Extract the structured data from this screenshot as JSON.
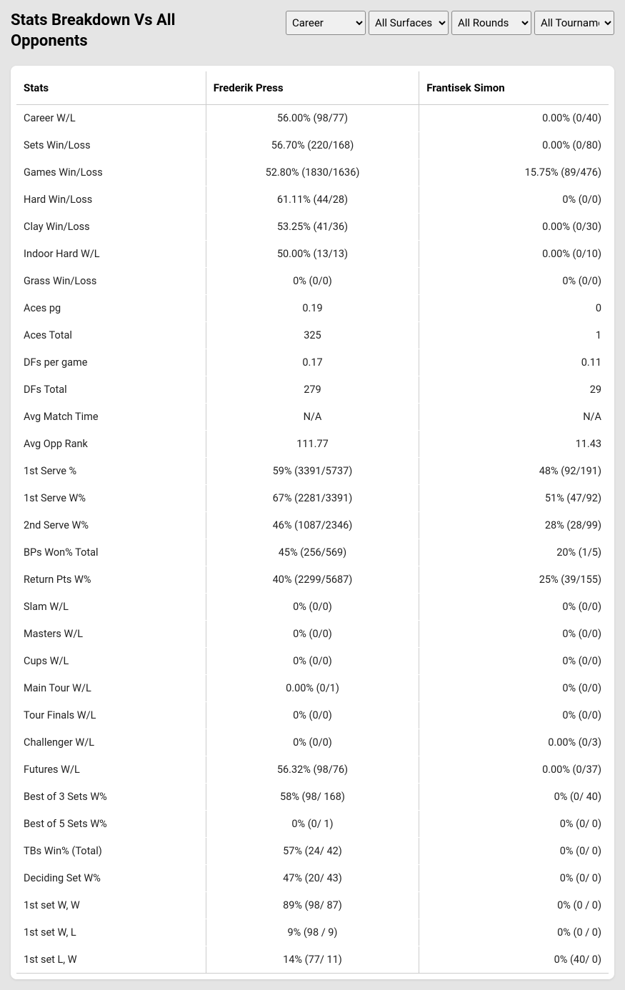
{
  "title": "Stats Breakdown Vs All Opponents",
  "filters": {
    "period": {
      "selected": "Career",
      "options": [
        "Career"
      ]
    },
    "surface": {
      "selected": "All Surfaces",
      "options": [
        "All Surfaces"
      ]
    },
    "round": {
      "selected": "All Rounds",
      "options": [
        "All Rounds"
      ]
    },
    "tournament": {
      "selected": "All Tournaments",
      "options": [
        "All Tournaments"
      ]
    }
  },
  "columns": {
    "stats": "Stats",
    "player1": "Frederik Press",
    "player2": "Frantisek Simon"
  },
  "rows": [
    {
      "label": "Career W/L",
      "p1": "56.00% (98/77)",
      "p2": "0.00% (0/40)"
    },
    {
      "label": "Sets Win/Loss",
      "p1": "56.70% (220/168)",
      "p2": "0.00% (0/80)"
    },
    {
      "label": "Games Win/Loss",
      "p1": "52.80% (1830/1636)",
      "p2": "15.75% (89/476)"
    },
    {
      "label": "Hard Win/Loss",
      "p1": "61.11% (44/28)",
      "p2": "0% (0/0)"
    },
    {
      "label": "Clay Win/Loss",
      "p1": "53.25% (41/36)",
      "p2": "0.00% (0/30)"
    },
    {
      "label": "Indoor Hard W/L",
      "p1": "50.00% (13/13)",
      "p2": "0.00% (0/10)"
    },
    {
      "label": "Grass Win/Loss",
      "p1": "0% (0/0)",
      "p2": "0% (0/0)"
    },
    {
      "label": "Aces pg",
      "p1": "0.19",
      "p2": "0"
    },
    {
      "label": "Aces Total",
      "p1": "325",
      "p2": "1"
    },
    {
      "label": "DFs per game",
      "p1": "0.17",
      "p2": "0.11"
    },
    {
      "label": "DFs Total",
      "p1": "279",
      "p2": "29"
    },
    {
      "label": "Avg Match Time",
      "p1": "N/A",
      "p2": "N/A"
    },
    {
      "label": "Avg Opp Rank",
      "p1": "111.77",
      "p2": "11.43"
    },
    {
      "label": "1st Serve %",
      "p1": "59% (3391/5737)",
      "p2": "48% (92/191)"
    },
    {
      "label": "1st Serve W%",
      "p1": "67% (2281/3391)",
      "p2": "51% (47/92)"
    },
    {
      "label": "2nd Serve W%",
      "p1": "46% (1087/2346)",
      "p2": "28% (28/99)"
    },
    {
      "label": "BPs Won% Total",
      "p1": "45% (256/569)",
      "p2": "20% (1/5)"
    },
    {
      "label": "Return Pts W%",
      "p1": "40% (2299/5687)",
      "p2": "25% (39/155)"
    },
    {
      "label": "Slam W/L",
      "p1": "0% (0/0)",
      "p2": "0% (0/0)"
    },
    {
      "label": "Masters W/L",
      "p1": "0% (0/0)",
      "p2": "0% (0/0)"
    },
    {
      "label": "Cups W/L",
      "p1": "0% (0/0)",
      "p2": "0% (0/0)"
    },
    {
      "label": "Main Tour W/L",
      "p1": "0.00% (0/1)",
      "p2": "0% (0/0)"
    },
    {
      "label": "Tour Finals W/L",
      "p1": "0% (0/0)",
      "p2": "0% (0/0)"
    },
    {
      "label": "Challenger W/L",
      "p1": "0% (0/0)",
      "p2": "0.00% (0/3)"
    },
    {
      "label": "Futures W/L",
      "p1": "56.32% (98/76)",
      "p2": "0.00% (0/37)"
    },
    {
      "label": "Best of 3 Sets W%",
      "p1": "58% (98/ 168)",
      "p2": "0% (0/ 40)"
    },
    {
      "label": "Best of 5 Sets W%",
      "p1": "0% (0/ 1)",
      "p2": "0% (0/ 0)"
    },
    {
      "label": "TBs Win% (Total)",
      "p1": "57% (24/ 42)",
      "p2": "0% (0/ 0)"
    },
    {
      "label": "Deciding Set W%",
      "p1": "47% (20/ 43)",
      "p2": "0% (0/ 0)"
    },
    {
      "label": "1st set W, W",
      "p1": "89% (98/ 87)",
      "p2": "0% (0 / 0)"
    },
    {
      "label": "1st set W, L",
      "p1": "9% (98 / 9)",
      "p2": "0% (0 / 0)"
    },
    {
      "label": "1st set L, W",
      "p1": "14% (77/ 11)",
      "p2": "0% (40/ 0)"
    }
  ]
}
